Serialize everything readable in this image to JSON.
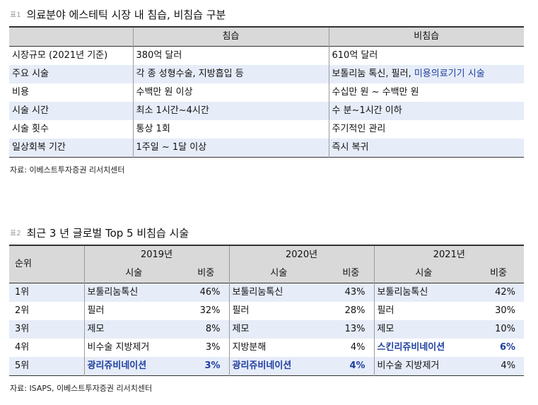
{
  "table1": {
    "num": "표1",
    "title": "의료분야 에스테틱 시장 내 침습, 비침습 구분",
    "col_header_1": "침습",
    "col_header_2": "비침습",
    "rows": [
      {
        "label": "시장규모 (2021년 기준)",
        "invasive": "380억 달러",
        "noninvasive_a": "610억 달러",
        "noninvasive_b": ""
      },
      {
        "label": "주요 시술",
        "invasive": "각 종 성형수술, 지방흡입 등",
        "noninvasive_a": "보톨리눔 톡신, 필러, ",
        "noninvasive_b": "미용의료기기 시술"
      },
      {
        "label": "비용",
        "invasive": "수백만 원 이상",
        "noninvasive_a": "수십만 원 ~ 수백만 원",
        "noninvasive_b": ""
      },
      {
        "label": "시술 시간",
        "invasive": "최소 1시간~4시간",
        "noninvasive_a": "수 분~1시간 이하",
        "noninvasive_b": ""
      },
      {
        "label": "시술 횟수",
        "invasive": "통상 1회",
        "noninvasive_a": "주기적인 관리",
        "noninvasive_b": ""
      },
      {
        "label": "일상회복 기간",
        "invasive": "1주일 ~ 1달 이상",
        "noninvasive_a": "즉시 복귀",
        "noninvasive_b": ""
      }
    ],
    "source": "자료: 이베스트투자증권 리서치센터"
  },
  "table2": {
    "num": "표2",
    "title": "최근 3 년 글로벌 Top 5 비침습 시술",
    "rank_header": "순위",
    "years": [
      "2019년",
      "2020년",
      "2021년"
    ],
    "sub_proc": "시술",
    "sub_share": "비중",
    "rows": [
      {
        "rank": "1위",
        "cells": [
          {
            "proc": "보툴리눔톡신",
            "share": "46%",
            "hl": false
          },
          {
            "proc": "보툴리눔톡신",
            "share": "43%",
            "hl": false
          },
          {
            "proc": "보툴리눔톡신",
            "share": "42%",
            "hl": false
          }
        ]
      },
      {
        "rank": "2위",
        "cells": [
          {
            "proc": "필러",
            "share": "32%",
            "hl": false
          },
          {
            "proc": "필러",
            "share": "28%",
            "hl": false
          },
          {
            "proc": "필러",
            "share": "30%",
            "hl": false
          }
        ]
      },
      {
        "rank": "3위",
        "cells": [
          {
            "proc": "제모",
            "share": "8%",
            "hl": false
          },
          {
            "proc": "제모",
            "share": "13%",
            "hl": false
          },
          {
            "proc": "제모",
            "share": "10%",
            "hl": false
          }
        ]
      },
      {
        "rank": "4위",
        "cells": [
          {
            "proc": "비수술 지방제거",
            "share": "3%",
            "hl": false
          },
          {
            "proc": "지방분해",
            "share": "4%",
            "hl": false
          },
          {
            "proc": "스킨리쥬비네이션",
            "share": "6%",
            "hl": true
          }
        ]
      },
      {
        "rank": "5위",
        "cells": [
          {
            "proc": "광리쥬비네이션",
            "share": "3%",
            "hl": true
          },
          {
            "proc": "광리쥬비네이션",
            "share": "4%",
            "hl": true
          },
          {
            "proc": "비수술 지방제거",
            "share": "4%",
            "hl": false
          }
        ]
      }
    ],
    "source": "자료: ISAPS, 이베스트투자증권 리서치센터"
  },
  "colors": {
    "header_gray": "#d9d9d9",
    "row_blue": "#e6ecf8",
    "highlight_text": "#1f3f9f",
    "rule_dark": "#333333"
  }
}
